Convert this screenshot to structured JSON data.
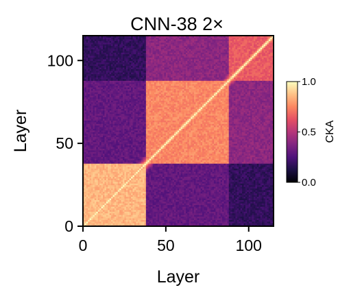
{
  "chart_data": {
    "type": "heatmap",
    "title": "CNN-38 2×",
    "xlabel": "Layer",
    "ylabel": "Layer",
    "n_layers": 115,
    "xlim": [
      0,
      115
    ],
    "ylim": [
      0,
      115
    ],
    "xticks": [
      0,
      50,
      100
    ],
    "yticks": [
      0,
      50,
      100
    ],
    "diagonal_value": 1.0,
    "blocks": [
      {
        "rows": [
          0,
          38
        ],
        "cols": [
          0,
          38
        ],
        "value": 0.85
      },
      {
        "rows": [
          38,
          88
        ],
        "cols": [
          38,
          88
        ],
        "value": 0.75
      },
      {
        "rows": [
          88,
          115
        ],
        "cols": [
          88,
          115
        ],
        "value": 0.65
      },
      {
        "rows": [
          0,
          38
        ],
        "cols": [
          38,
          88
        ],
        "value": 0.3
      },
      {
        "rows": [
          0,
          38
        ],
        "cols": [
          88,
          115
        ],
        "value": 0.18
      },
      {
        "rows": [
          38,
          88
        ],
        "cols": [
          88,
          115
        ],
        "value": 0.4
      }
    ],
    "colorbar": {
      "label": "CKA",
      "range": [
        0.0,
        1.0
      ],
      "ticks": [
        0.0,
        0.5,
        1.0
      ],
      "tick_labels": [
        "0.0",
        "0.5",
        "1.0"
      ],
      "colormap": "magma"
    }
  }
}
